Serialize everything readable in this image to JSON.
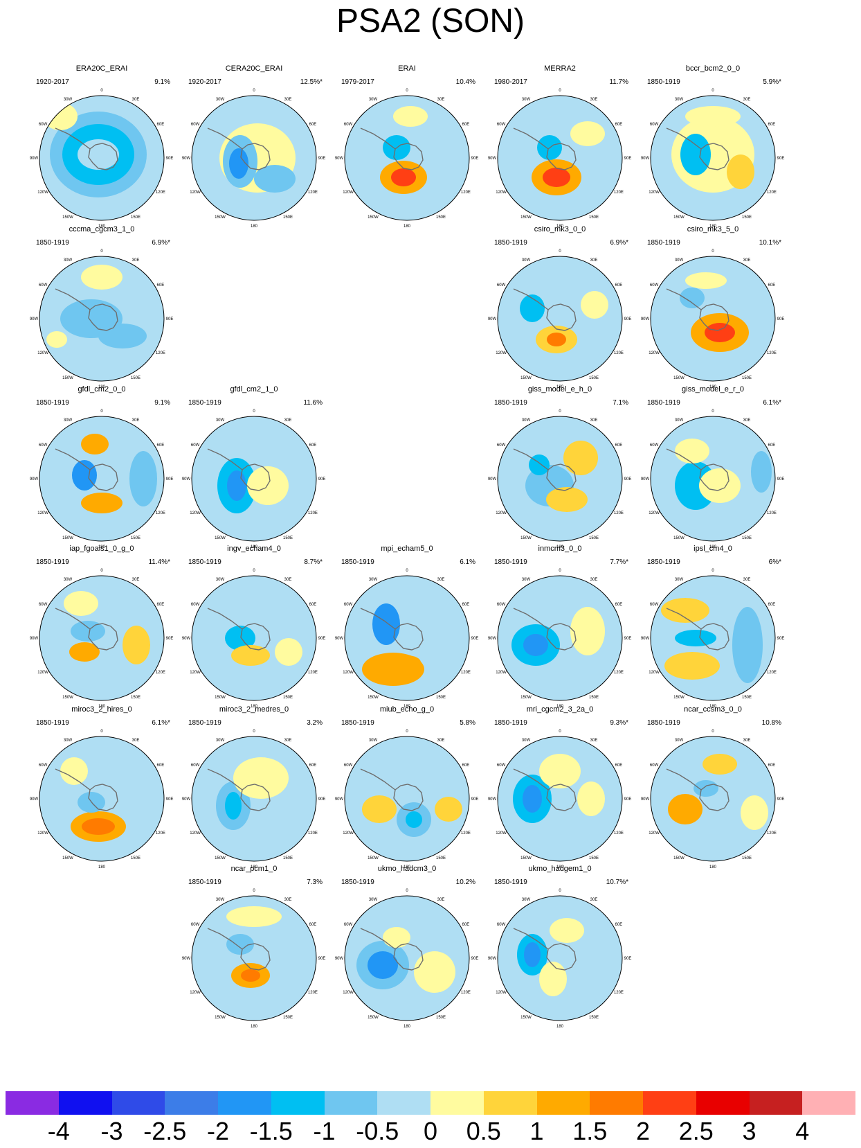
{
  "title": "PSA2 (SON)",
  "lon_labels": [
    "0",
    "30E",
    "60E",
    "90E",
    "120E",
    "150E",
    "180",
    "150W",
    "120W",
    "90W",
    "60W",
    "30W"
  ],
  "colors": {
    "ocean_base": "#afdef3",
    "coast": "#6e6e6e",
    "rim": "#000000"
  },
  "colorbar": {
    "colors": [
      "#8a2be2",
      "#1010f0",
      "#2f4be8",
      "#3c7de8",
      "#2196f5",
      "#00bff2",
      "#6fc6f0",
      "#afdef3",
      "#fffb9f",
      "#ffd43a",
      "#ffaa00",
      "#ff7b00",
      "#ff3f14",
      "#e80000",
      "#c62020",
      "#ffb0b4"
    ],
    "ticks": [
      "-4",
      "-3",
      "-2.5",
      "-2",
      "-1.5",
      "-1",
      "-0.5",
      "0",
      "0.5",
      "1",
      "1.5",
      "2",
      "2.5",
      "3",
      "4"
    ]
  },
  "panels": [
    {
      "name": "ERA20C_ERAI",
      "period": "1920-2017",
      "pct": "9.1%"
    },
    {
      "name": "CERA20C_ERAI",
      "period": "1920-2017",
      "pct": "12.5%*"
    },
    {
      "name": "ERAI",
      "period": "1979-2017",
      "pct": "10.4%"
    },
    {
      "name": "MERRA2",
      "period": "1980-2017",
      "pct": "11.7%"
    },
    {
      "name": "bccr_bcm2_0_0",
      "period": "1850-1919",
      "pct": "5.9%*"
    },
    {
      "name": "cccma_cgcm3_1_0",
      "period": "1850-1919",
      "pct": "6.9%*"
    },
    {
      "name": "csiro_mk3_0_0",
      "period": "1850-1919",
      "pct": "6.9%*"
    },
    {
      "name": "csiro_mk3_5_0",
      "period": "1850-1919",
      "pct": "10.1%*"
    },
    {
      "name": "gfdl_cm2_0_0",
      "period": "1850-1919",
      "pct": "9.1%"
    },
    {
      "name": "gfdl_cm2_1_0",
      "period": "1850-1919",
      "pct": "11.6%"
    },
    {
      "name": "giss_model_e_h_0",
      "period": "1850-1919",
      "pct": "7.1%"
    },
    {
      "name": "giss_model_e_r_0",
      "period": "1850-1919",
      "pct": "6.1%*"
    },
    {
      "name": "iap_fgoals1_0_g_0",
      "period": "1850-1919",
      "pct": "11.4%*"
    },
    {
      "name": "ingv_echam4_0",
      "period": "1850-1919",
      "pct": "8.7%*"
    },
    {
      "name": "mpi_echam5_0",
      "period": "1850-1919",
      "pct": "6.1%"
    },
    {
      "name": "inmcm3_0_0",
      "period": "1850-1919",
      "pct": "7.7%*"
    },
    {
      "name": "ipsl_cm4_0",
      "period": "1850-1919",
      "pct": "6%*"
    },
    {
      "name": "miroc3_2_hires_0",
      "period": "1850-1919",
      "pct": "6.1%*"
    },
    {
      "name": "miroc3_2_medres_0",
      "period": "1850-1919",
      "pct": "3.2%"
    },
    {
      "name": "miub_echo_g_0",
      "period": "1850-1919",
      "pct": "5.8%"
    },
    {
      "name": "mri_cgcm2_3_2a_0",
      "period": "1850-1919",
      "pct": "9.3%*"
    },
    {
      "name": "ncar_ccsm3_0_0",
      "period": "1850-1919",
      "pct": "10.8%"
    },
    {
      "name": "ncar_pcm1_0",
      "period": "1850-1919",
      "pct": "7.3%"
    },
    {
      "name": "ukmo_hadcm3_0",
      "period": "1850-1919",
      "pct": "10.2%"
    },
    {
      "name": "ukmo_hadgem1_0",
      "period": "1850-1919",
      "pct": "10.7%*"
    }
  ]
}
